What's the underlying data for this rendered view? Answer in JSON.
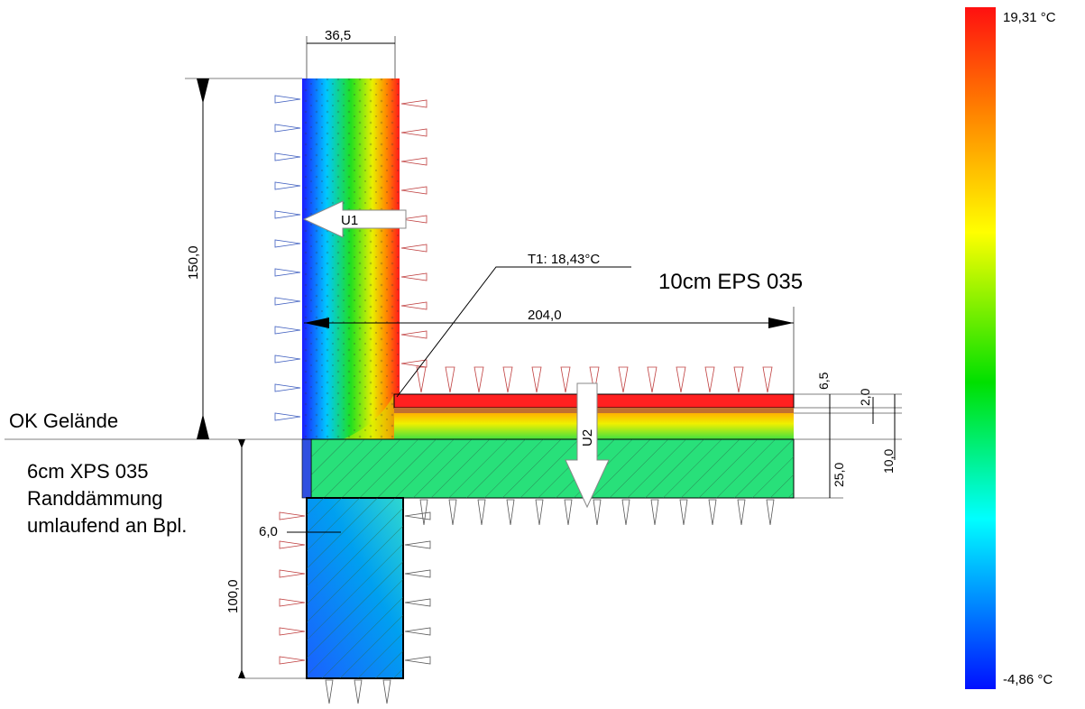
{
  "dimensions": {
    "wall_thickness": "36,5",
    "wall_height": "150,0",
    "floor_length": "204,0",
    "perimeter_insulation": "6,0",
    "foundation_depth": "100,0",
    "floor_layer_1": "6,5",
    "floor_layer_2": "2,0",
    "floor_layer_3": "10,0",
    "slab": "25,0"
  },
  "labels": {
    "u1": "U1",
    "u2": "U2",
    "t1": "T1: 18,43°C",
    "floor_insulation": "10cm EPS 035",
    "ground_level": "OK Gelände",
    "perimeter_lines": [
      "6cm XPS 035",
      "Randdämmung",
      "umlaufend an Bpl."
    ]
  },
  "color_scale": {
    "max_label": "19,31 °C",
    "min_label": "-4,86 °C"
  }
}
